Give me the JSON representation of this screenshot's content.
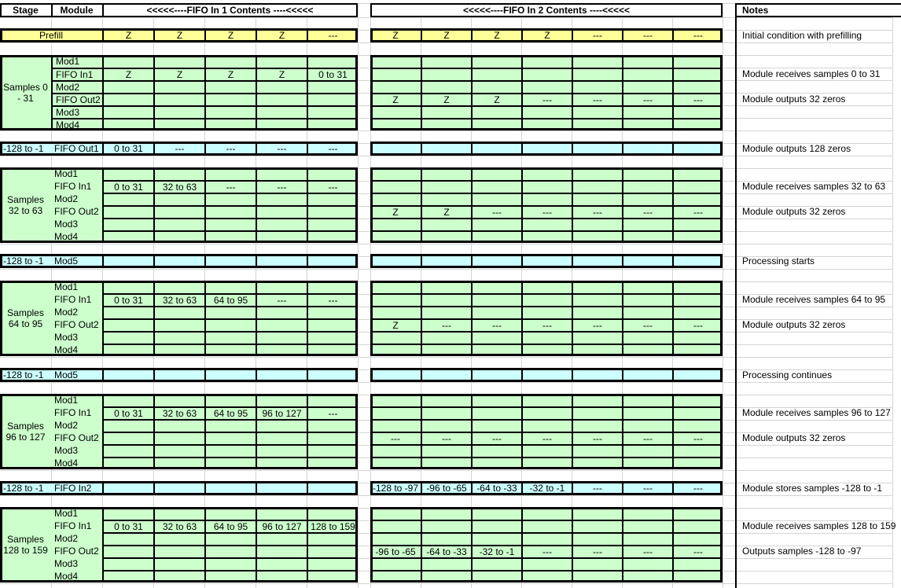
{
  "header": {
    "stage": "Stage",
    "module": "Module",
    "fifo1": "<<<<<----FIFO In 1 Contents ----<<<<<",
    "fifo2": "<<<<<----FIFO In 2 Contents ----<<<<<",
    "notes": "Notes"
  },
  "colors": {
    "prefill_yellow": "#FFFF99",
    "block_green": "#CCFFCC",
    "event_blue": "#CCFFFF",
    "border_black": "#000000",
    "gridline_gray": "#d4d4d4"
  },
  "sections": [
    {
      "type": "prefill",
      "stage": "Prefill",
      "fifo1_cells": [
        "Z",
        "Z",
        "Z",
        "Z",
        "---"
      ],
      "fifo2_cells": [
        "Z",
        "Z",
        "Z",
        "Z",
        "---",
        "---",
        "---"
      ],
      "note": "Initial condition with prefilling"
    },
    {
      "type": "block",
      "stage": "Samples 0\n- 31",
      "module_cells_bordered": true,
      "modules": [
        "Mod1",
        "FIFO In1",
        "Mod2",
        "FIFO Out2",
        "Mod3",
        "Mod4"
      ],
      "fifo_in1": [
        "Z",
        "Z",
        "Z",
        "Z",
        "0 to 31"
      ],
      "fifo_out2": [
        "Z",
        "Z",
        "Z",
        "---",
        "---",
        "---",
        "---"
      ],
      "note_fifo_in1": "Module receives samples 0 to 31",
      "note_fifo_out2": "Module outputs 32 zeros"
    },
    {
      "type": "bluerow",
      "stage": "-128 to -1",
      "module": "FIFO Out1",
      "fifo1_cells": [
        "0 to 31",
        "---",
        "---",
        "---",
        "---"
      ],
      "fifo2_cells": [
        "",
        "",
        "",
        "",
        "",
        "",
        ""
      ],
      "note": "Module outputs 128 zeros"
    },
    {
      "type": "block",
      "stage": "Samples\n32 to 63",
      "module_cells_bordered": false,
      "modules": [
        "Mod1",
        "FIFO In1",
        "Mod2",
        "FIFO Out2",
        "Mod3",
        "Mod4"
      ],
      "fifo_in1": [
        "0 to 31",
        "32 to 63",
        "---",
        "---",
        "---"
      ],
      "fifo_out2": [
        "Z",
        "Z",
        "---",
        "---",
        "---",
        "---",
        "---"
      ],
      "note_fifo_in1": "Module receives samples 32 to 63",
      "note_fifo_out2": "Module outputs 32 zeros"
    },
    {
      "type": "bluerow",
      "stage": "-128 to -1",
      "module": "Mod5",
      "fifo1_cells": [
        "",
        "",
        "",
        "",
        ""
      ],
      "fifo2_cells": [
        "",
        "",
        "",
        "",
        "",
        "",
        ""
      ],
      "note": "Processing starts"
    },
    {
      "type": "block",
      "stage": "Samples\n64 to 95",
      "module_cells_bordered": false,
      "modules": [
        "Mod1",
        "FIFO In1",
        "Mod2",
        "FIFO Out2",
        "Mod3",
        "Mod4"
      ],
      "fifo_in1": [
        "0 to 31",
        "32 to 63",
        "64 to 95",
        "---",
        "---"
      ],
      "fifo_out2": [
        "Z",
        "---",
        "---",
        "---",
        "---",
        "---",
        "---"
      ],
      "note_fifo_in1": "Module receives samples 64 to 95",
      "note_fifo_out2": "Module outputs 32 zeros"
    },
    {
      "type": "bluerow",
      "stage": "-128 to -1",
      "module": "Mod5",
      "fifo1_cells": [
        "",
        "",
        "",
        "",
        ""
      ],
      "fifo2_cells": [
        "",
        "",
        "",
        "",
        "",
        "",
        ""
      ],
      "note": "Processing continues"
    },
    {
      "type": "block",
      "stage": "Samples\n96 to 127",
      "module_cells_bordered": false,
      "modules": [
        "Mod1",
        "FIFO In1",
        "Mod2",
        "FIFO Out2",
        "Mod3",
        "Mod4"
      ],
      "fifo_in1": [
        "0 to 31",
        "32 to 63",
        "64 to 95",
        "96 to 127",
        "---"
      ],
      "fifo_out2": [
        "---",
        "---",
        "---",
        "---",
        "---",
        "---",
        "---"
      ],
      "note_fifo_in1": "Module receives samples 96 to 127",
      "note_fifo_out2": "Module outputs 32 zeros"
    },
    {
      "type": "bluerow",
      "stage": "-128 to -1",
      "module": "FIFO In2",
      "fifo1_cells": [
        "",
        "",
        "",
        "",
        ""
      ],
      "fifo2_cells": [
        "-128 to -97",
        "-96 to -65",
        "-64 to -33",
        "-32 to -1",
        "---",
        "---",
        "---"
      ],
      "note": "Module stores samples -128 to -1"
    },
    {
      "type": "block",
      "stage": "Samples\n128 to 159",
      "module_cells_bordered": false,
      "modules": [
        "Mod1",
        "FIFO In1",
        "Mod2",
        "FIFO Out2",
        "Mod3",
        "Mod4"
      ],
      "fifo_in1": [
        "0 to 31",
        "32 to 63",
        "64 to 95",
        "96 to 127",
        "128 to 159"
      ],
      "fifo_out2": [
        "-96 to -65",
        "-64 to -33",
        "-32 to -1",
        "---",
        "---",
        "---",
        "---"
      ],
      "note_fifo_in1": "Module receives samples 128 to 159",
      "note_fifo_out2": "Outputs samples -128 to -97"
    }
  ]
}
